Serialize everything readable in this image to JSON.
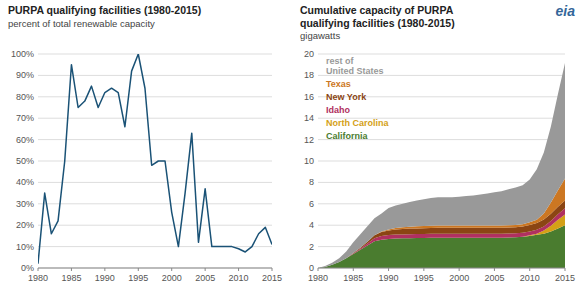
{
  "chart_data": [
    {
      "type": "line",
      "title": "PURPA qualifying facilities (1980-2015)",
      "subtitle": "percent of total renewable capacity",
      "x": [
        1980,
        1981,
        1982,
        1983,
        1984,
        1985,
        1986,
        1987,
        1988,
        1989,
        1990,
        1991,
        1992,
        1993,
        1994,
        1995,
        1996,
        1997,
        1998,
        1999,
        2000,
        2001,
        2002,
        2003,
        2004,
        2005,
        2006,
        2007,
        2008,
        2009,
        2010,
        2011,
        2012,
        2013,
        2014,
        2015
      ],
      "values": [
        0.02,
        0.35,
        0.16,
        0.22,
        0.5,
        0.95,
        0.75,
        0.78,
        0.85,
        0.75,
        0.82,
        0.84,
        0.82,
        0.66,
        0.92,
        1.0,
        0.84,
        0.48,
        0.5,
        0.5,
        0.26,
        0.1,
        0.35,
        0.63,
        0.12,
        0.37,
        0.1,
        0.1,
        0.1,
        0.1,
        0.09,
        0.075,
        0.1,
        0.16,
        0.19,
        0.11
      ],
      "color": "#1a5276",
      "xlim": [
        1980,
        2015
      ],
      "xticks": [
        1980,
        1985,
        1990,
        1995,
        2000,
        2005,
        2010,
        2015
      ],
      "ylim": [
        0,
        1.0
      ],
      "yticks": [
        {
          "value": 0,
          "label": "0%"
        },
        {
          "value": 0.1,
          "label": "10%"
        },
        {
          "value": 0.2,
          "label": "20%"
        },
        {
          "value": 0.3,
          "label": "30%"
        },
        {
          "value": 0.4,
          "label": "40%"
        },
        {
          "value": 0.5,
          "label": "50%"
        },
        {
          "value": 0.6,
          "label": "60%"
        },
        {
          "value": 0.7,
          "label": "70%"
        },
        {
          "value": 0.8,
          "label": "80%"
        },
        {
          "value": 0.9,
          "label": "90%"
        },
        {
          "value": 1.0,
          "label": "100%"
        }
      ],
      "grid": true
    },
    {
      "type": "area",
      "stacked": true,
      "title": "Cumulative capacity of PURPA\nqualifying facilities (1980-2015)",
      "subtitle": "gigawatts",
      "x": [
        1980,
        1981,
        1982,
        1983,
        1984,
        1985,
        1986,
        1987,
        1988,
        1989,
        1990,
        1991,
        1992,
        1993,
        1994,
        1995,
        1996,
        1997,
        1998,
        1999,
        2000,
        2001,
        2002,
        2003,
        2004,
        2005,
        2006,
        2007,
        2008,
        2009,
        2010,
        2011,
        2012,
        2013,
        2014,
        2015
      ],
      "series": [
        {
          "name": "California",
          "color": "#4a7c2f",
          "values": [
            0.0,
            0.1,
            0.3,
            0.55,
            0.9,
            1.3,
            1.7,
            2.1,
            2.5,
            2.65,
            2.72,
            2.75,
            2.77,
            2.79,
            2.8,
            2.81,
            2.82,
            2.83,
            2.83,
            2.83,
            2.83,
            2.83,
            2.83,
            2.83,
            2.83,
            2.83,
            2.83,
            2.85,
            2.88,
            2.92,
            3.0,
            3.1,
            3.2,
            3.4,
            3.7,
            4.0
          ]
        },
        {
          "name": "North Carolina",
          "color": "#d4a017",
          "values": [
            0.0,
            0.0,
            0.0,
            0.0,
            0.0,
            0.0,
            0.0,
            0.0,
            0.0,
            0.0,
            0.0,
            0.0,
            0.0,
            0.0,
            0.0,
            0.0,
            0.0,
            0.0,
            0.0,
            0.0,
            0.0,
            0.0,
            0.0,
            0.0,
            0.0,
            0.0,
            0.0,
            0.0,
            0.0,
            0.0,
            0.05,
            0.1,
            0.3,
            0.55,
            0.8,
            1.0
          ]
        },
        {
          "name": "Idaho",
          "color": "#b03060",
          "values": [
            0.0,
            0.0,
            0.0,
            0.0,
            0.0,
            0.05,
            0.1,
            0.18,
            0.28,
            0.33,
            0.36,
            0.37,
            0.37,
            0.37,
            0.37,
            0.37,
            0.37,
            0.37,
            0.37,
            0.37,
            0.37,
            0.37,
            0.37,
            0.37,
            0.37,
            0.37,
            0.37,
            0.37,
            0.37,
            0.37,
            0.37,
            0.37,
            0.38,
            0.45,
            0.52,
            0.58
          ]
        },
        {
          "name": "New York",
          "color": "#8b4513",
          "values": [
            0.0,
            0.0,
            0.0,
            0.0,
            0.0,
            0.05,
            0.1,
            0.18,
            0.28,
            0.38,
            0.43,
            0.48,
            0.5,
            0.52,
            0.53,
            0.54,
            0.55,
            0.56,
            0.56,
            0.56,
            0.56,
            0.56,
            0.56,
            0.56,
            0.56,
            0.56,
            0.56,
            0.57,
            0.57,
            0.58,
            0.6,
            0.63,
            0.66,
            0.68,
            0.7,
            0.73
          ]
        },
        {
          "name": "Texas",
          "color": "#cc7722",
          "values": [
            0.0,
            0.0,
            0.0,
            0.0,
            0.0,
            0.0,
            0.0,
            0.0,
            0.0,
            0.04,
            0.09,
            0.13,
            0.16,
            0.18,
            0.2,
            0.21,
            0.21,
            0.21,
            0.21,
            0.21,
            0.21,
            0.21,
            0.21,
            0.21,
            0.21,
            0.21,
            0.21,
            0.21,
            0.21,
            0.22,
            0.25,
            0.32,
            0.55,
            1.05,
            1.55,
            2.05
          ]
        },
        {
          "name": "rest of\nUnited States",
          "color": "#999999",
          "values": [
            0.0,
            0.08,
            0.18,
            0.35,
            0.65,
            1.0,
            1.25,
            1.45,
            1.6,
            1.7,
            2.0,
            2.1,
            2.2,
            2.3,
            2.4,
            2.5,
            2.6,
            2.65,
            2.65,
            2.65,
            2.7,
            2.75,
            2.8,
            2.9,
            3.0,
            3.1,
            3.2,
            3.35,
            3.5,
            3.65,
            4.0,
            4.7,
            5.7,
            7.1,
            9.0,
            10.8
          ]
        }
      ],
      "xlim": [
        1980,
        2015
      ],
      "xticks": [
        1980,
        1985,
        1990,
        1995,
        2000,
        2005,
        2010,
        2015
      ],
      "ylim": [
        0,
        20
      ],
      "yticks": [
        0,
        2,
        4,
        6,
        8,
        10,
        12,
        14,
        16,
        18,
        20
      ],
      "grid": true,
      "legend": "upper left",
      "annotations": [
        {
          "text": "eia",
          "color": "#336699"
        }
      ]
    }
  ]
}
